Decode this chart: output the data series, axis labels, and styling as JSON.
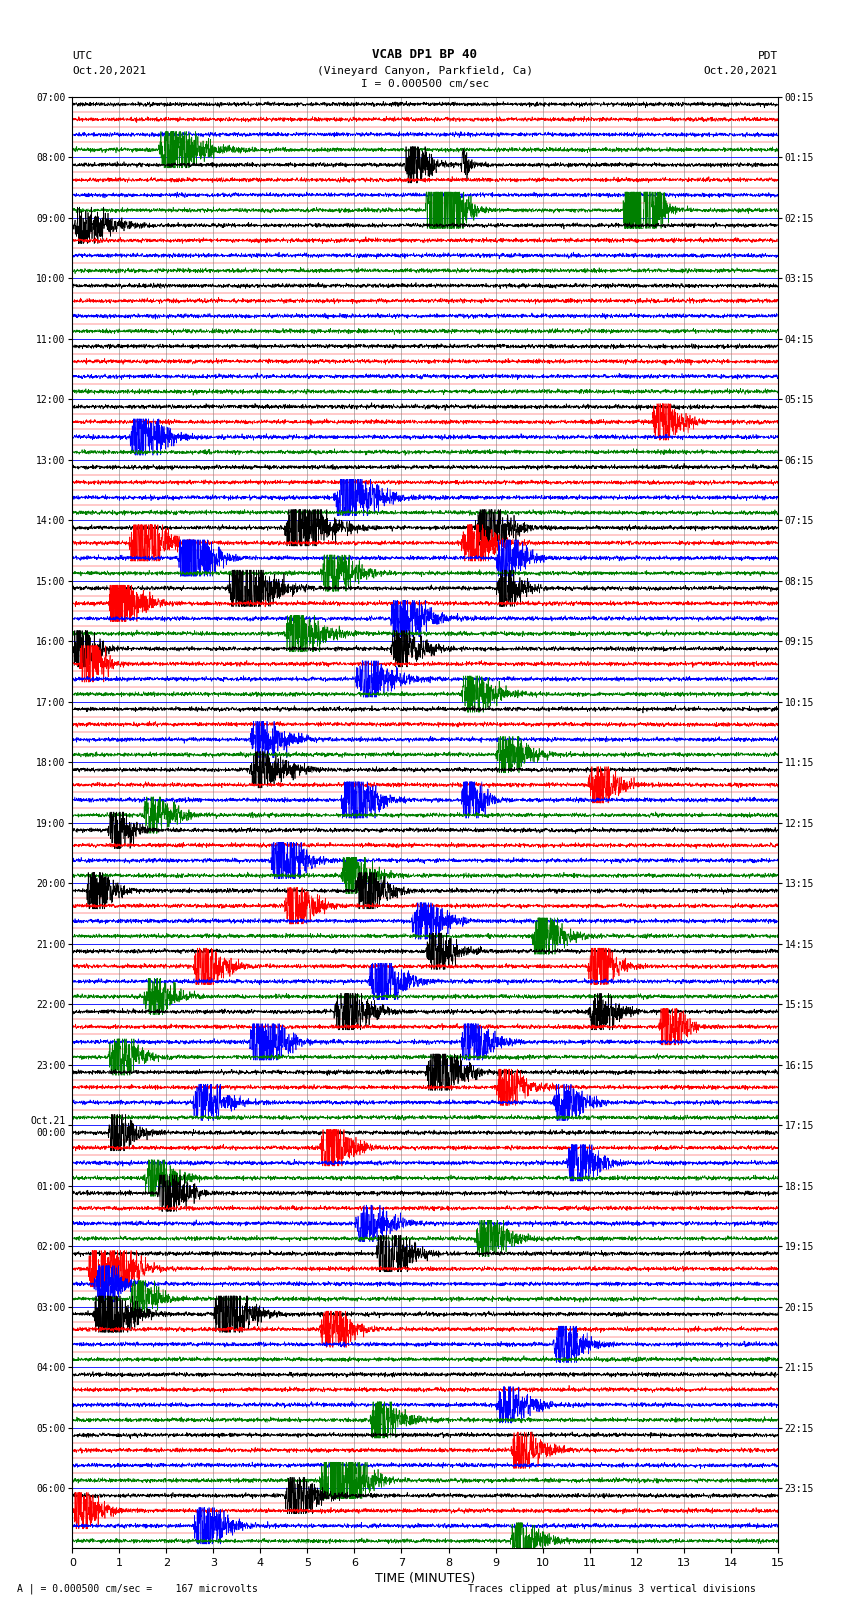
{
  "title_line1": "VCAB DP1 BP 40",
  "title_line2": "(Vineyard Canyon, Parkfield, Ca)",
  "scale_text": "I = 0.000500 cm/sec",
  "left_date": "Oct.20,2021",
  "right_date": "Oct.20,2021",
  "left_label": "UTC",
  "right_label": "PDT",
  "bottom_label1": "A | = 0.000500 cm/sec =    167 microvolts",
  "bottom_label2": "Traces clipped at plus/minus 3 vertical divisions",
  "xlabel": "TIME (MINUTES)",
  "left_times": [
    "07:00",
    "08:00",
    "09:00",
    "10:00",
    "11:00",
    "12:00",
    "13:00",
    "14:00",
    "15:00",
    "16:00",
    "17:00",
    "18:00",
    "19:00",
    "20:00",
    "21:00",
    "22:00",
    "23:00",
    "Oct.21\n00:00",
    "01:00",
    "02:00",
    "03:00",
    "04:00",
    "05:00",
    "06:00"
  ],
  "right_times": [
    "00:15",
    "01:15",
    "02:15",
    "03:15",
    "04:15",
    "05:15",
    "06:15",
    "07:15",
    "08:15",
    "09:15",
    "10:15",
    "11:15",
    "12:15",
    "13:15",
    "14:15",
    "15:15",
    "16:15",
    "17:15",
    "18:15",
    "19:15",
    "20:15",
    "21:15",
    "22:15",
    "23:15"
  ],
  "n_rows": 24,
  "n_traces_per_row": 4,
  "colors": [
    "black",
    "red",
    "blue",
    "green"
  ],
  "time_minutes": 15,
  "bg_color": "white"
}
